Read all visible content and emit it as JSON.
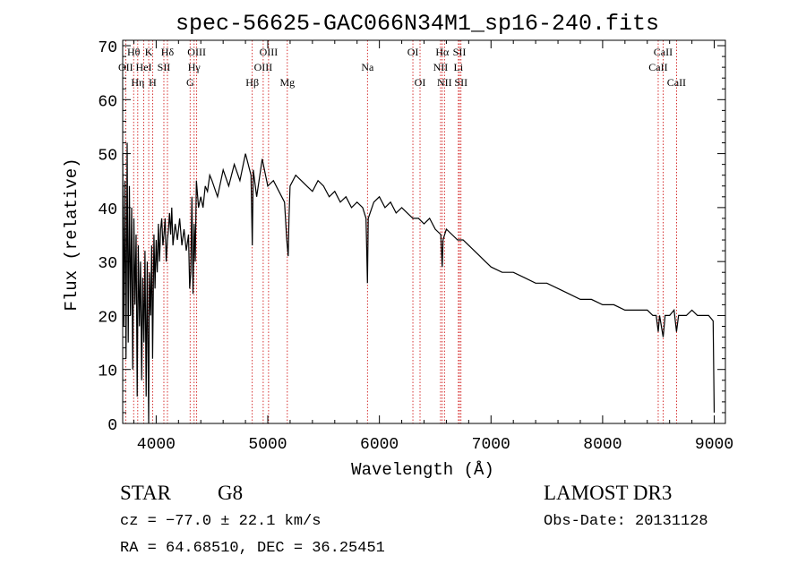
{
  "chart_data": {
    "type": "line",
    "title": "spec-56625-GAC066N34M1_sp16-240.fits",
    "xlabel": "Wavelength (Å)",
    "ylabel": "Flux (relative)",
    "xlim": [
      3700,
      9100
    ],
    "ylim": [
      0,
      71
    ],
    "xticks": [
      4000,
      5000,
      6000,
      7000,
      8000,
      9000
    ],
    "yticks": [
      0,
      10,
      20,
      30,
      40,
      50,
      60,
      70
    ],
    "grid": false,
    "series": [
      {
        "name": "spectrum",
        "x": [
          3700,
          3710,
          3720,
          3730,
          3740,
          3750,
          3760,
          3770,
          3780,
          3790,
          3800,
          3810,
          3820,
          3830,
          3840,
          3850,
          3860,
          3870,
          3880,
          3890,
          3900,
          3910,
          3920,
          3933,
          3940,
          3950,
          3960,
          3968,
          3980,
          3990,
          4000,
          4010,
          4020,
          4030,
          4040,
          4050,
          4060,
          4070,
          4080,
          4090,
          4101,
          4110,
          4120,
          4130,
          4140,
          4150,
          4170,
          4190,
          4210,
          4230,
          4250,
          4270,
          4290,
          4300,
          4310,
          4320,
          4330,
          4340,
          4350,
          4360,
          4380,
          4400,
          4420,
          4440,
          4460,
          4480,
          4500,
          4550,
          4600,
          4650,
          4700,
          4750,
          4800,
          4850,
          4861,
          4870,
          4900,
          4950,
          5000,
          5050,
          5100,
          5150,
          5170,
          5183,
          5190,
          5200,
          5250,
          5300,
          5350,
          5400,
          5450,
          5500,
          5550,
          5600,
          5650,
          5700,
          5750,
          5800,
          5850,
          5880,
          5893,
          5900,
          5950,
          6000,
          6050,
          6100,
          6150,
          6200,
          6250,
          6300,
          6350,
          6400,
          6450,
          6500,
          6550,
          6563,
          6570,
          6600,
          6650,
          6700,
          6750,
          6800,
          6850,
          6900,
          6950,
          7000,
          7100,
          7200,
          7300,
          7400,
          7500,
          7600,
          7700,
          7800,
          7900,
          8000,
          8100,
          8200,
          8300,
          8400,
          8450,
          8480,
          8498,
          8510,
          8542,
          8560,
          8600,
          8640,
          8662,
          8680,
          8700,
          8750,
          8800,
          8850,
          8900,
          8950,
          8990,
          9000
        ],
        "y": [
          50,
          18,
          45,
          12,
          52,
          15,
          44,
          20,
          40,
          10,
          38,
          22,
          35,
          5,
          33,
          18,
          30,
          8,
          27,
          15,
          32,
          5,
          30,
          0,
          28,
          20,
          33,
          12,
          35,
          25,
          34,
          28,
          37,
          30,
          36,
          38,
          33,
          35,
          38,
          30,
          34,
          36,
          39,
          35,
          40,
          33,
          37,
          34,
          38,
          33,
          36,
          32,
          35,
          25,
          28,
          42,
          24,
          37,
          30,
          45,
          40,
          42,
          40,
          44,
          43,
          46,
          45,
          42,
          47,
          44,
          48,
          45,
          50,
          46,
          33,
          47,
          42,
          49,
          44,
          45,
          43,
          41,
          34,
          31,
          38,
          44,
          46,
          45,
          44,
          43,
          45,
          44,
          42,
          43,
          41,
          42,
          40,
          41,
          40,
          38,
          26,
          38,
          41,
          42,
          40,
          41,
          39,
          40,
          39,
          38,
          38,
          37,
          38,
          36,
          35,
          29,
          34,
          36,
          35,
          34,
          34,
          33,
          32,
          31,
          30,
          29,
          28,
          28,
          27,
          26,
          26,
          25,
          24,
          23,
          23,
          22,
          22,
          21,
          21,
          21,
          20,
          20,
          17,
          20,
          16,
          20,
          20,
          21,
          17,
          20,
          20,
          20,
          21,
          20,
          20,
          20,
          19,
          2
        ]
      }
    ],
    "line_labels": [
      {
        "name": "OII",
        "x": 3727,
        "row": 2
      },
      {
        "name": "Hθ",
        "x": 3798,
        "row": 1
      },
      {
        "name": "Hη",
        "x": 3835,
        "row": 3
      },
      {
        "name": "HeI",
        "x": 3889,
        "row": 2
      },
      {
        "name": "K",
        "x": 3933,
        "row": 1
      },
      {
        "name": "H",
        "x": 3968,
        "row": 3
      },
      {
        "name": "SII",
        "x": 4069,
        "row": 2
      },
      {
        "name": "Hδ",
        "x": 4101,
        "row": 1
      },
      {
        "name": "G",
        "x": 4304,
        "row": 3
      },
      {
        "name": "OIII",
        "x": 4363,
        "row": 1
      },
      {
        "name": "Hγ",
        "x": 4340,
        "row": 2
      },
      {
        "name": "Hβ",
        "x": 4861,
        "row": 3
      },
      {
        "name": "OIII",
        "x": 4959,
        "row": 2
      },
      {
        "name": "OIII",
        "x": 5007,
        "row": 1
      },
      {
        "name": "Mg",
        "x": 5175,
        "row": 3
      },
      {
        "name": "Na",
        "x": 5893,
        "row": 2
      },
      {
        "name": "OI",
        "x": 6300,
        "row": 1
      },
      {
        "name": "OI",
        "x": 6364,
        "row": 3
      },
      {
        "name": "Hα",
        "x": 6563,
        "row": 1
      },
      {
        "name": "NII",
        "x": 6548,
        "row": 2
      },
      {
        "name": "NII",
        "x": 6583,
        "row": 3
      },
      {
        "name": "SII",
        "x": 6717,
        "row": 1
      },
      {
        "name": "Li",
        "x": 6708,
        "row": 2
      },
      {
        "name": "SII",
        "x": 6731,
        "row": 3
      },
      {
        "name": "CaII",
        "x": 8542,
        "row": 1
      },
      {
        "name": "CaII",
        "x": 8498,
        "row": 2
      },
      {
        "name": "CaII",
        "x": 8662,
        "row": 3
      }
    ],
    "line_color": "#cc0000"
  },
  "info": {
    "object_type": "STAR",
    "subclass": "G8",
    "survey": "LAMOST DR3",
    "cz": "cz = −77.0 ± 22.1 km/s",
    "obs_date": "Obs-Date: 20131128",
    "coords": "RA =  64.68510, DEC =  36.25451"
  }
}
